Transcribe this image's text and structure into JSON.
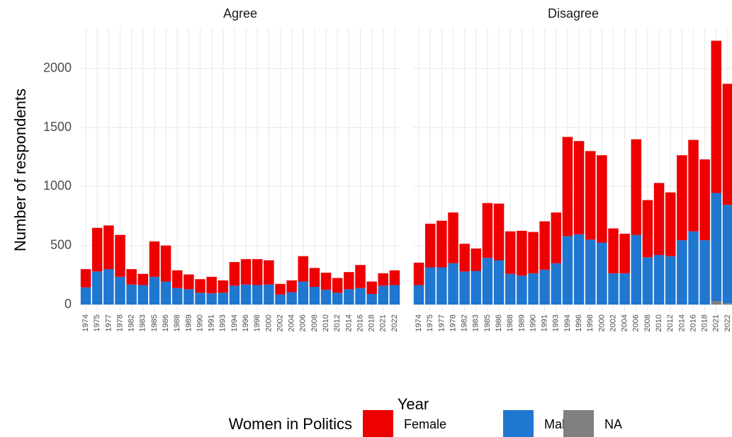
{
  "chart_data": {
    "type": "bar",
    "stacked": true,
    "x_label": "Year",
    "y_label": "Number of respondents",
    "legend_title": "Women in Politics",
    "legend_position": "bottom",
    "grid": true,
    "categories": [
      "1974",
      "1975",
      "1977",
      "1978",
      "1982",
      "1983",
      "1985",
      "1986",
      "1988",
      "1989",
      "1990",
      "1991",
      "1993",
      "1994",
      "1996",
      "1998",
      "2000",
      "2002",
      "2004",
      "2006",
      "2008",
      "2010",
      "2012",
      "2014",
      "2016",
      "2018",
      "2021",
      "2022"
    ],
    "ylim": [
      0,
      2340
    ],
    "yticks": [
      0,
      500,
      1000,
      1500,
      2000
    ],
    "series": [
      {
        "name": "Female",
        "color": "#ee0000"
      },
      {
        "name": "Male",
        "color": "#1f77d0"
      },
      {
        "name": "NA",
        "color": "#808080"
      }
    ],
    "facets": [
      {
        "title": "Agree",
        "values": [
          [
            155,
            370,
            370,
            355,
            130,
            95,
            300,
            305,
            150,
            125,
            115,
            140,
            105,
            200,
            215,
            220,
            205,
            90,
            100,
            215,
            160,
            145,
            125,
            145,
            195,
            105,
            105,
            125
          ],
          [
            145,
            280,
            300,
            235,
            170,
            165,
            235,
            195,
            140,
            130,
            100,
            95,
            100,
            160,
            170,
            165,
            170,
            85,
            105,
            195,
            150,
            125,
            100,
            130,
            140,
            90,
            160,
            165
          ],
          [
            0,
            0,
            0,
            0,
            0,
            0,
            0,
            0,
            0,
            0,
            0,
            0,
            0,
            0,
            0,
            0,
            0,
            0,
            0,
            0,
            0,
            0,
            0,
            0,
            0,
            0,
            0,
            0
          ]
        ]
      },
      {
        "title": "Disagree",
        "values": [
          [
            190,
            370,
            395,
            430,
            235,
            190,
            465,
            480,
            360,
            380,
            350,
            410,
            430,
            840,
            790,
            750,
            740,
            380,
            335,
            810,
            485,
            610,
            540,
            720,
            775,
            685,
            1290,
            1025
          ],
          [
            165,
            315,
            315,
            350,
            280,
            285,
            395,
            375,
            260,
            245,
            265,
            295,
            350,
            580,
            595,
            550,
            525,
            265,
            265,
            590,
            400,
            420,
            410,
            545,
            620,
            545,
            915,
            835
          ],
          [
            0,
            0,
            0,
            0,
            0,
            0,
            0,
            0,
            0,
            0,
            0,
            0,
            0,
            0,
            0,
            0,
            0,
            0,
            0,
            0,
            0,
            0,
            0,
            0,
            0,
            0,
            30,
            10
          ]
        ]
      }
    ]
  }
}
